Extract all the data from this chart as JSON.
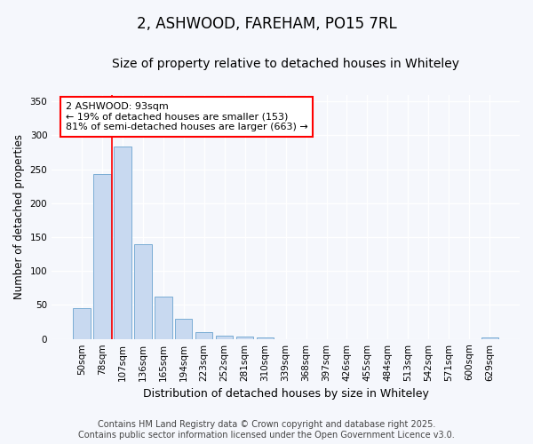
{
  "title1": "2, ASHWOOD, FAREHAM, PO15 7RL",
  "title2": "Size of property relative to detached houses in Whiteley",
  "xlabel": "Distribution of detached houses by size in Whiteley",
  "ylabel": "Number of detached properties",
  "categories": [
    "50sqm",
    "78sqm",
    "107sqm",
    "136sqm",
    "165sqm",
    "194sqm",
    "223sqm",
    "252sqm",
    "281sqm",
    "310sqm",
    "339sqm",
    "368sqm",
    "397sqm",
    "426sqm",
    "455sqm",
    "484sqm",
    "513sqm",
    "542sqm",
    "571sqm",
    "600sqm",
    "629sqm"
  ],
  "values": [
    46,
    243,
    283,
    140,
    62,
    30,
    10,
    5,
    3,
    2,
    0,
    0,
    0,
    0,
    0,
    0,
    0,
    0,
    0,
    0,
    2
  ],
  "bar_color": "#c8d9f0",
  "bar_edge_color": "#7aadd4",
  "vline_x": 1.5,
  "vline_color": "red",
  "annotation_text": "2 ASHWOOD: 93sqm\n← 19% of detached houses are smaller (153)\n81% of semi-detached houses are larger (663) →",
  "ylim": [
    0,
    360
  ],
  "yticks": [
    0,
    50,
    100,
    150,
    200,
    250,
    300,
    350
  ],
  "background_color": "#f5f7fc",
  "plot_bg_color": "#f5f7fc",
  "footer_text": "Contains HM Land Registry data © Crown copyright and database right 2025.\nContains public sector information licensed under the Open Government Licence v3.0.",
  "title1_fontsize": 12,
  "title2_fontsize": 10,
  "xlabel_fontsize": 9,
  "ylabel_fontsize": 8.5,
  "footer_fontsize": 7,
  "annotation_fontsize": 8,
  "tick_fontsize": 7.5
}
